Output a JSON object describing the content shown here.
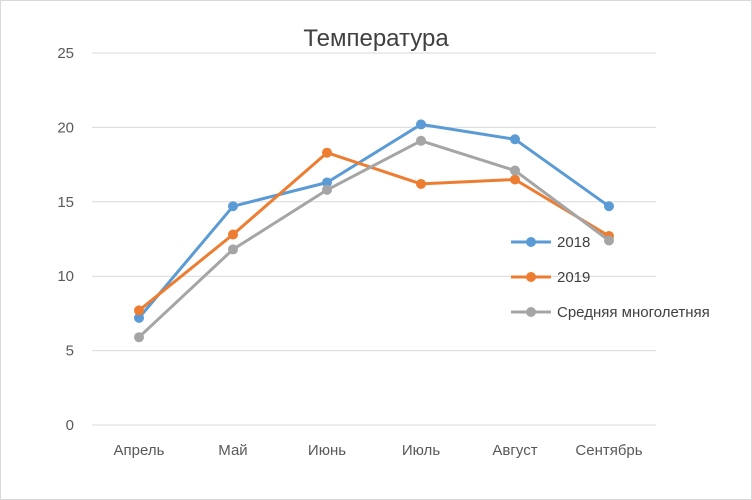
{
  "chart_data": {
    "type": "line",
    "title": "Температура",
    "xlabel": "",
    "ylabel": "",
    "categories": [
      "Апрель",
      "Май",
      "Июнь",
      "Июль",
      "Август",
      "Сентябрь"
    ],
    "ylim": [
      0,
      25
    ],
    "yticks": [
      0,
      5,
      10,
      15,
      20,
      25
    ],
    "grid": true,
    "legend": "right",
    "series": [
      {
        "name": "2018",
        "color": "#5b9bd5",
        "values": [
          7.2,
          14.7,
          16.3,
          20.2,
          19.2,
          14.7
        ]
      },
      {
        "name": "2019",
        "color": "#ed7d31",
        "values": [
          7.7,
          12.8,
          18.3,
          16.2,
          16.5,
          12.7
        ]
      },
      {
        "name": "Средняя многолетняя",
        "color": "#a5a5a5",
        "values": [
          5.9,
          11.8,
          15.8,
          19.1,
          17.1,
          12.4
        ]
      }
    ]
  }
}
